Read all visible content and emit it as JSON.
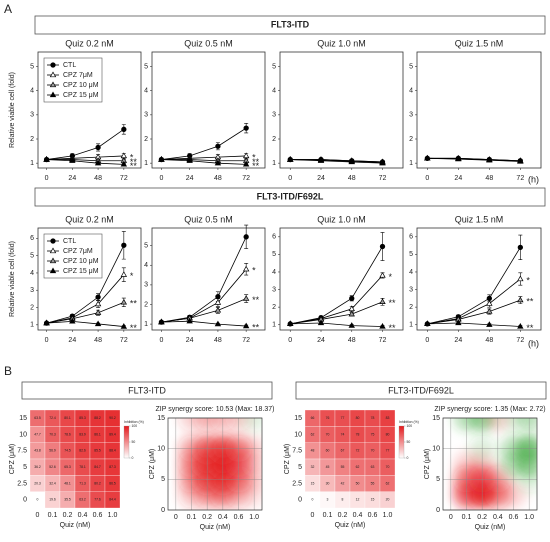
{
  "figure": {
    "panel_a_label": "A",
    "panel_b_label": "B",
    "group_titles": [
      "FLT3-ITD",
      "FLT3-ITD/F692L"
    ],
    "y_label": "Relative viable cell (fold)",
    "x_unit": "(h)"
  },
  "chart_data": [
    {
      "type": "line",
      "title": "Quiz 0.2 nM",
      "x": [
        0,
        24,
        48,
        72
      ],
      "xlim": [
        -8,
        88
      ],
      "xticks": [
        0,
        24,
        48,
        72
      ],
      "ylim": [
        0.8,
        5.6
      ],
      "yticks": [
        1,
        2,
        3,
        4,
        5
      ],
      "legend": "upper left",
      "series": [
        {
          "name": "CTL",
          "color": "#000000",
          "marker": "circle",
          "values": [
            1.15,
            1.3,
            1.65,
            2.4
          ],
          "errors": [
            0.05,
            0.1,
            0.15,
            0.2
          ]
        },
        {
          "name": "CPZ 7μM",
          "color": "#ffffff",
          "marker": "triangle",
          "values": [
            1.15,
            1.2,
            1.25,
            1.3
          ],
          "errors": [
            0.05,
            0.05,
            0.1,
            0.1
          ],
          "annotation": "*"
        },
        {
          "name": "CPZ 10 μM",
          "color": "#9e9e9e",
          "marker": "triangle",
          "values": [
            1.15,
            1.15,
            1.1,
            1.1
          ],
          "errors": [
            0.05,
            0.05,
            0.05,
            0.05
          ],
          "annotation": "**"
        },
        {
          "name": "CPZ 15 μM",
          "color": "#000000",
          "marker": "triangle",
          "values": [
            1.15,
            1.1,
            1.0,
            0.95
          ],
          "errors": [
            0.05,
            0.05,
            0.05,
            0.05
          ],
          "annotation": "**"
        }
      ]
    },
    {
      "type": "line",
      "title": "Quiz 0.5 nM",
      "x": [
        0,
        24,
        48,
        72
      ],
      "xlim": [
        -8,
        88
      ],
      "xticks": [
        0,
        24,
        48,
        72
      ],
      "ylim": [
        0.8,
        5.6
      ],
      "yticks": [
        1,
        2,
        3,
        4,
        5
      ],
      "series": [
        {
          "color": "#000000",
          "marker": "circle",
          "values": [
            1.15,
            1.3,
            1.7,
            2.45
          ],
          "errors": [
            0.05,
            0.1,
            0.15,
            0.2
          ]
        },
        {
          "color": "#ffffff",
          "marker": "triangle",
          "values": [
            1.15,
            1.2,
            1.25,
            1.3
          ],
          "errors": [
            0.05,
            0.05,
            0.1,
            0.1
          ],
          "annotation": "*"
        },
        {
          "color": "#9e9e9e",
          "marker": "triangle",
          "values": [
            1.15,
            1.15,
            1.1,
            1.1
          ],
          "errors": [
            0.05,
            0.05,
            0.05,
            0.05
          ],
          "annotation": "**"
        },
        {
          "color": "#000000",
          "marker": "triangle",
          "values": [
            1.15,
            1.1,
            1.0,
            0.95
          ],
          "errors": [
            0.05,
            0.05,
            0.05,
            0.05
          ],
          "annotation": "**"
        }
      ]
    },
    {
      "type": "line",
      "title": "Quiz 1.0 nM",
      "x": [
        0,
        24,
        48,
        72
      ],
      "xlim": [
        -8,
        88
      ],
      "xticks": [
        0,
        24,
        48,
        72
      ],
      "ylim": [
        0.8,
        5.6
      ],
      "yticks": [
        1,
        2,
        3,
        4,
        5
      ],
      "series": [
        {
          "color": "#000000",
          "marker": "circle",
          "values": [
            1.15,
            1.15,
            1.1,
            1.05
          ],
          "errors": [
            0.05,
            0.05,
            0.05,
            0.05
          ]
        },
        {
          "color": "#ffffff",
          "marker": "triangle",
          "values": [
            1.15,
            1.15,
            1.1,
            1.05
          ],
          "errors": [
            0.05,
            0.05,
            0.05,
            0.05
          ]
        },
        {
          "color": "#9e9e9e",
          "marker": "triangle",
          "values": [
            1.15,
            1.12,
            1.08,
            1.03
          ],
          "errors": [
            0.05,
            0.05,
            0.05,
            0.05
          ]
        },
        {
          "color": "#000000",
          "marker": "triangle",
          "values": [
            1.15,
            1.1,
            1.05,
            1.0
          ],
          "errors": [
            0.05,
            0.05,
            0.05,
            0.05
          ]
        }
      ]
    },
    {
      "type": "line",
      "title": "Quiz 1.5 nM",
      "x": [
        0,
        24,
        48,
        72
      ],
      "xlim": [
        -8,
        88
      ],
      "xticks": [
        0,
        24,
        48,
        72
      ],
      "ylim": [
        0.8,
        5.6
      ],
      "yticks": [
        1,
        2,
        3,
        4,
        5
      ],
      "series": [
        {
          "color": "#000000",
          "marker": "circle",
          "values": [
            1.2,
            1.2,
            1.15,
            1.1
          ],
          "errors": [
            0.05,
            0.05,
            0.05,
            0.05
          ]
        },
        {
          "color": "#ffffff",
          "marker": "triangle",
          "values": [
            1.2,
            1.2,
            1.15,
            1.1
          ],
          "errors": [
            0.05,
            0.05,
            0.05,
            0.05
          ]
        },
        {
          "color": "#9e9e9e",
          "marker": "triangle",
          "values": [
            1.2,
            1.18,
            1.13,
            1.08
          ],
          "errors": [
            0.05,
            0.05,
            0.05,
            0.05
          ]
        },
        {
          "color": "#000000",
          "marker": "triangle",
          "values": [
            1.2,
            1.17,
            1.12,
            1.07
          ],
          "errors": [
            0.05,
            0.05,
            0.05,
            0.05
          ]
        }
      ]
    },
    {
      "type": "line",
      "title": "Quiz 0.2 nM",
      "x": [
        0,
        24,
        48,
        72
      ],
      "xlim": [
        -8,
        88
      ],
      "xticks": [
        0,
        24,
        48,
        72
      ],
      "ylim": [
        0.7,
        6.6
      ],
      "yticks": [
        1,
        2,
        3,
        4,
        5,
        6
      ],
      "legend": "upper left",
      "series": [
        {
          "name": "CTL",
          "color": "#000000",
          "marker": "circle",
          "values": [
            1.1,
            1.5,
            2.6,
            5.6
          ],
          "errors": [
            0.05,
            0.1,
            0.2,
            0.8
          ]
        },
        {
          "name": "CPZ 7μM",
          "color": "#ffffff",
          "marker": "triangle",
          "values": [
            1.1,
            1.4,
            2.2,
            3.9
          ],
          "errors": [
            0.05,
            0.1,
            0.2,
            0.4
          ],
          "annotation": "*"
        },
        {
          "name": "CPZ 10 μM",
          "color": "#9e9e9e",
          "marker": "triangle",
          "values": [
            1.1,
            1.35,
            1.7,
            2.3
          ],
          "errors": [
            0.05,
            0.1,
            0.15,
            0.25
          ],
          "annotation": "**"
        },
        {
          "name": "CPZ 15 μM",
          "color": "#000000",
          "marker": "triangle",
          "values": [
            1.1,
            1.2,
            1.05,
            0.9
          ],
          "errors": [
            0.05,
            0.05,
            0.05,
            0.05
          ],
          "annotation": "**"
        }
      ]
    },
    {
      "type": "line",
      "title": "Quiz 0.5 nM",
      "x": [
        0,
        24,
        48,
        72
      ],
      "xlim": [
        -8,
        88
      ],
      "xticks": [
        0,
        24,
        48,
        72
      ],
      "ylim": [
        0.7,
        5.9
      ],
      "yticks": [
        1,
        2,
        3,
        4,
        5
      ],
      "series": [
        {
          "color": "#000000",
          "marker": "circle",
          "values": [
            1.1,
            1.35,
            2.4,
            5.45
          ],
          "errors": [
            0.05,
            0.1,
            0.25,
            0.6
          ]
        },
        {
          "color": "#ffffff",
          "marker": "triangle",
          "values": [
            1.1,
            1.3,
            2.1,
            3.8
          ],
          "errors": [
            0.05,
            0.1,
            0.2,
            0.3
          ],
          "annotation": "*"
        },
        {
          "color": "#9e9e9e",
          "marker": "triangle",
          "values": [
            1.1,
            1.3,
            1.7,
            2.3
          ],
          "errors": [
            0.05,
            0.1,
            0.15,
            0.2
          ],
          "annotation": "**"
        },
        {
          "color": "#000000",
          "marker": "triangle",
          "values": [
            1.1,
            1.15,
            1.0,
            0.9
          ],
          "errors": [
            0.05,
            0.05,
            0.05,
            0.05
          ],
          "annotation": "**"
        }
      ]
    },
    {
      "type": "line",
      "title": "Quiz 1.0 nM",
      "x": [
        0,
        24,
        48,
        72
      ],
      "xlim": [
        -8,
        88
      ],
      "xticks": [
        0,
        24,
        48,
        72
      ],
      "ylim": [
        0.7,
        6.5
      ],
      "yticks": [
        1,
        2,
        3,
        4,
        5,
        6
      ],
      "series": [
        {
          "color": "#000000",
          "marker": "circle",
          "values": [
            1.05,
            1.4,
            2.5,
            5.45
          ],
          "errors": [
            0.05,
            0.1,
            0.15,
            0.8
          ]
        },
        {
          "color": "#ffffff",
          "marker": "triangle",
          "values": [
            1.05,
            1.35,
            1.9,
            3.8
          ],
          "errors": [
            0.05,
            0.1,
            0.15,
            0.15
          ],
          "annotation": "*"
        },
        {
          "color": "#9e9e9e",
          "marker": "triangle",
          "values": [
            1.05,
            1.3,
            1.6,
            2.3
          ],
          "errors": [
            0.05,
            0.1,
            0.1,
            0.2
          ],
          "annotation": "**"
        },
        {
          "color": "#000000",
          "marker": "triangle",
          "values": [
            1.05,
            1.1,
            0.95,
            0.9
          ],
          "errors": [
            0.05,
            0.05,
            0.05,
            0.05
          ],
          "annotation": "**"
        }
      ]
    },
    {
      "type": "line",
      "title": "Quiz 1.5 nM",
      "x": [
        0,
        24,
        48,
        72
      ],
      "xlim": [
        -8,
        88
      ],
      "xticks": [
        0,
        24,
        48,
        72
      ],
      "ylim": [
        0.7,
        6.5
      ],
      "yticks": [
        1,
        2,
        3,
        4,
        5,
        6
      ],
      "series": [
        {
          "color": "#000000",
          "marker": "circle",
          "values": [
            1.05,
            1.45,
            2.5,
            5.4
          ],
          "errors": [
            0.05,
            0.1,
            0.2,
            0.7
          ]
        },
        {
          "color": "#ffffff",
          "marker": "triangle",
          "values": [
            1.05,
            1.35,
            2.2,
            3.6
          ],
          "errors": [
            0.05,
            0.1,
            0.2,
            0.35
          ],
          "annotation": "*"
        },
        {
          "color": "#9e9e9e",
          "marker": "triangle",
          "values": [
            1.05,
            1.3,
            1.75,
            2.4
          ],
          "errors": [
            0.05,
            0.1,
            0.15,
            0.2
          ],
          "annotation": "**"
        },
        {
          "color": "#000000",
          "marker": "triangle",
          "values": [
            1.05,
            1.1,
            1.0,
            0.9
          ],
          "errors": [
            0.05,
            0.05,
            0.05,
            0.05
          ],
          "annotation": "**"
        }
      ]
    },
    {
      "type": "heatmap",
      "x_categories": [
        "0",
        "0.1",
        "0.2",
        "0.4",
        "0.6",
        "1.0"
      ],
      "y_categories": [
        "15",
        "10",
        "7.5",
        "5",
        "2.5",
        "0"
      ],
      "values": [
        [
          63.5,
          72.4,
          80.1,
          85.3,
          88.2,
          90.2
        ],
        [
          47.7,
          70.3,
          78.6,
          83.9,
          86.1,
          89.4
        ],
        [
          43.8,
          56.9,
          74.5,
          82.6,
          85.5,
          88.4
        ],
        [
          36.2,
          52.6,
          65.3,
          78.1,
          84.7,
          87.3
        ],
        [
          20.3,
          32.4,
          48.1,
          71.3,
          80.2,
          86.5
        ],
        [
          0,
          19.6,
          35.5,
          63.2,
          77.6,
          84.4
        ]
      ],
      "zlim": [
        0,
        100
      ],
      "color": "#e3191c",
      "xlabel": "Quiz (nM)",
      "ylabel": "CPZ (μM)",
      "colorbar_label": "Inhibition (%)",
      "colorbar_ticks": [
        0,
        50,
        100
      ]
    },
    {
      "type": "contour",
      "title": "ZIP synergy score: 10.53 (Max: 18.37)",
      "x_categories": [
        "0",
        "0.1",
        "0.2",
        "0.4",
        "0.6",
        "1.0"
      ],
      "y": [
        0,
        2.5,
        5,
        7.5,
        10,
        15
      ],
      "ylim": [
        0,
        15
      ],
      "yticks": [
        0,
        5,
        10,
        15
      ],
      "values": [
        [
          0,
          0,
          0,
          0,
          0,
          0
        ],
        [
          0,
          5,
          8,
          10,
          6,
          2
        ],
        [
          0,
          8,
          14,
          16,
          10,
          3
        ],
        [
          0,
          9,
          16,
          18.37,
          12,
          4
        ],
        [
          0,
          7,
          13,
          15,
          10,
          3
        ],
        [
          0,
          4,
          6,
          5,
          4,
          -3
        ]
      ],
      "zlim": [
        -20,
        20
      ],
      "high_color": "#e3191c",
      "low_color": "#2ca02c",
      "xlabel": "Quiz (nM)",
      "ylabel": "CPZ (μM)"
    },
    {
      "type": "heatmap",
      "x_categories": [
        "0",
        "0.1",
        "0.2",
        "0.4",
        "0.6",
        "1.0"
      ],
      "y_categories": [
        "15",
        "10",
        "7.5",
        "5",
        "2.5",
        "0"
      ],
      "values": [
        [
          66,
          76,
          77,
          80,
          78,
          83
        ],
        [
          62,
          70,
          74,
          78,
          75,
          80
        ],
        [
          48,
          60,
          67,
          72,
          70,
          77
        ],
        [
          32,
          45,
          55,
          62,
          63,
          70
        ],
        [
          15,
          30,
          42,
          50,
          55,
          62
        ],
        [
          0,
          3,
          8,
          12,
          15,
          20
        ]
      ],
      "zlim": [
        0,
        100
      ],
      "color": "#e3191c",
      "xlabel": "Quiz (nM)",
      "ylabel": "CPZ (μM)",
      "colorbar_label": "Inhibition (%)",
      "colorbar_ticks": [
        0,
        50,
        100
      ]
    },
    {
      "type": "contour",
      "title": "ZIP synergy score: 1.35 (Max: 2.72)",
      "x_categories": [
        "0",
        "0.1",
        "0.2",
        "0.4",
        "0.6",
        "1.0"
      ],
      "y": [
        0,
        2.5,
        5,
        7.5,
        10,
        15
      ],
      "ylim": [
        0,
        15
      ],
      "yticks": [
        0,
        5,
        10,
        15
      ],
      "values": [
        [
          0,
          0,
          0,
          0,
          0,
          0
        ],
        [
          0,
          2,
          2.72,
          1.5,
          0.5,
          0
        ],
        [
          0,
          1.5,
          2,
          1,
          0,
          -0.5
        ],
        [
          0,
          0.5,
          0.5,
          0,
          -1,
          -1.5
        ],
        [
          0,
          0,
          -0.5,
          0,
          -1,
          -2
        ],
        [
          0,
          -1,
          -1.5,
          0.5,
          -0.5,
          -1
        ]
      ],
      "zlim": [
        -3,
        3
      ],
      "high_color": "#e3191c",
      "low_color": "#2ca02c",
      "xlabel": "Quiz (nM)",
      "ylabel": "CPZ (μM)"
    }
  ]
}
